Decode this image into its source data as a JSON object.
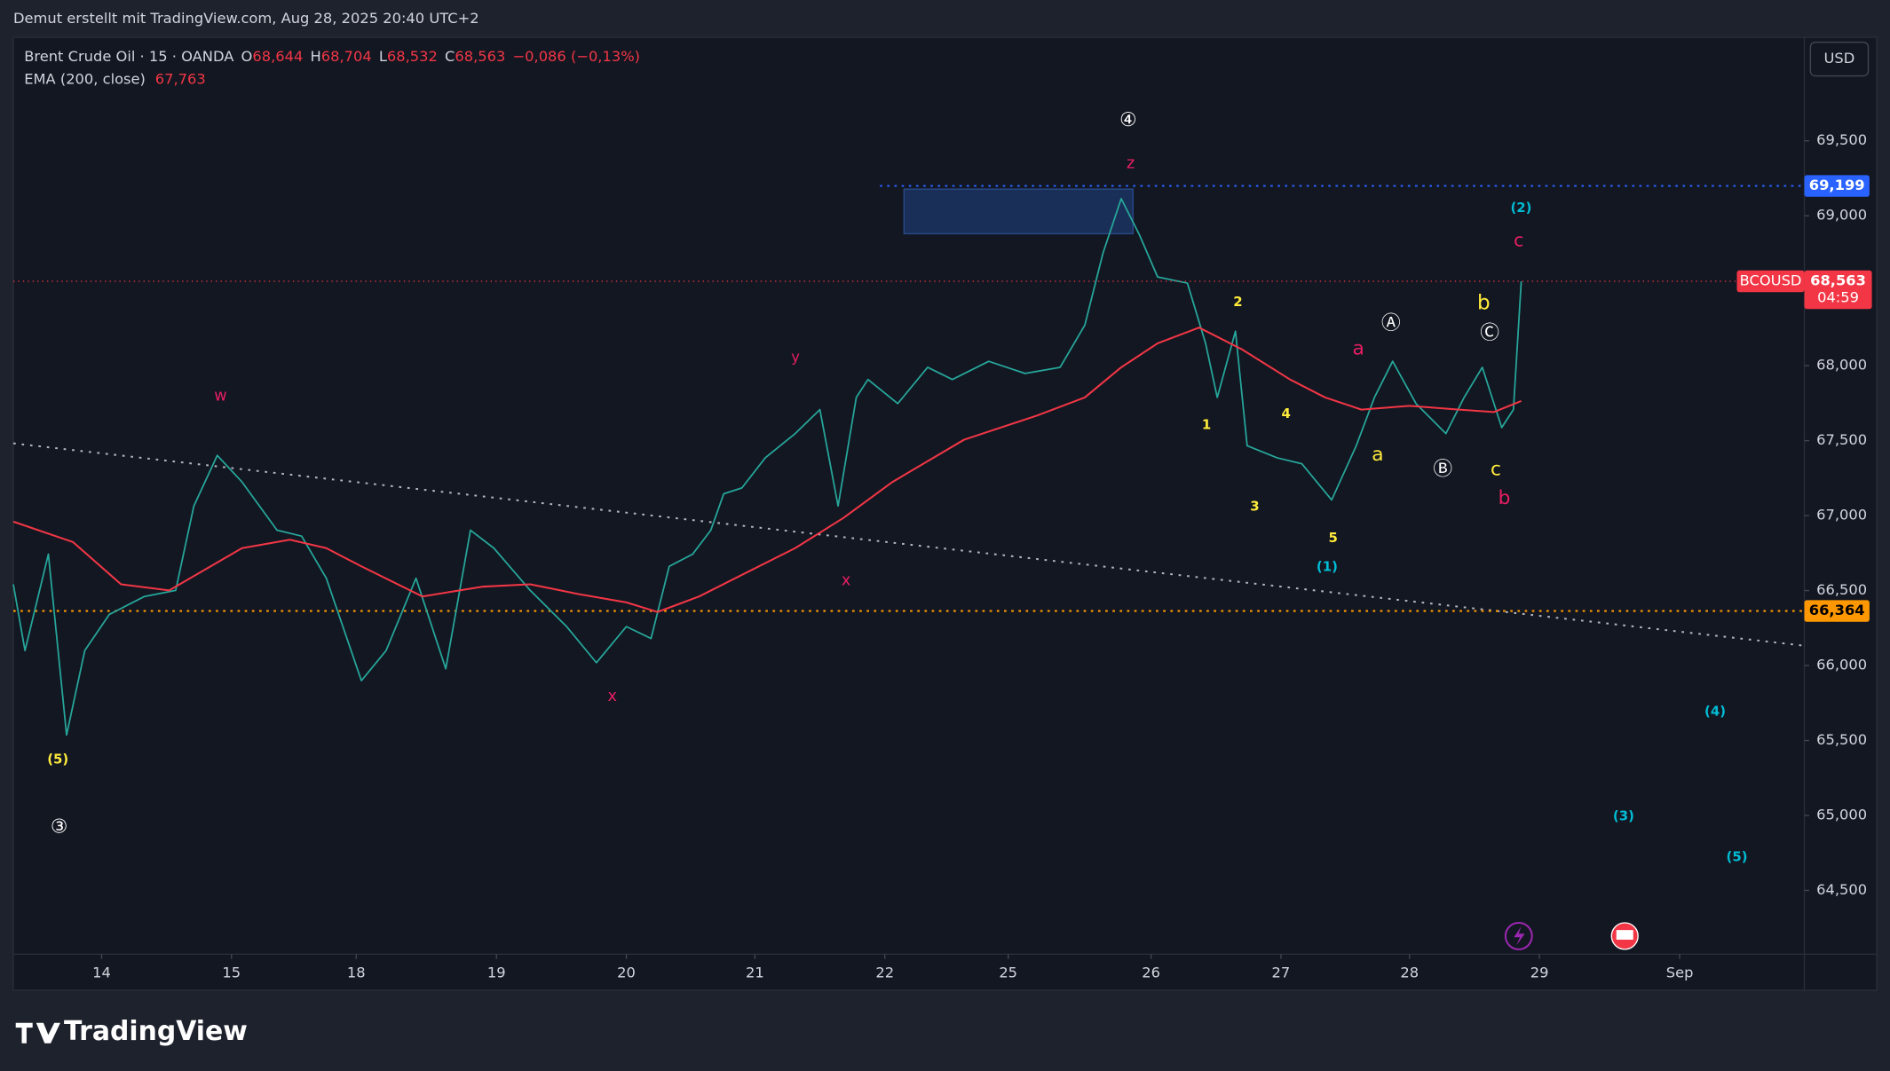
{
  "header": {
    "attribution": "Demut erstellt mit TradingView.com, Aug 28, 2025 20:40 UTC+2"
  },
  "legend": {
    "ohlc": [
      {
        "label": "O",
        "value": "68,644"
      },
      {
        "label": "H",
        "value": "68,704"
      },
      {
        "label": "L",
        "value": "68,532"
      },
      {
        "label": "C",
        "value": "68,563"
      }
    ],
    "change": "−0,086 (−0,13%)",
    "ema_value": "67,763"
  },
  "currency": "USD",
  "footer": {
    "logo": "TradingView"
  },
  "chart_data": {
    "type": "line",
    "xlim": [
      -0.68,
      13.11
    ],
    "ylim": [
      64075,
      70190
    ],
    "grid": false,
    "xticks": [
      {
        "value": 0,
        "label": "14"
      },
      {
        "value": 1.0,
        "label": "15"
      },
      {
        "value": 1.96,
        "label": "18"
      },
      {
        "value": 3.04,
        "label": "19"
      },
      {
        "value": 4.04,
        "label": "20"
      },
      {
        "value": 5.03,
        "label": "21"
      },
      {
        "value": 6.03,
        "label": "22"
      },
      {
        "value": 6.98,
        "label": "25"
      },
      {
        "value": 8.08,
        "label": "26"
      },
      {
        "value": 9.08,
        "label": "27"
      },
      {
        "value": 10.07,
        "label": "28"
      },
      {
        "value": 11.07,
        "label": "29"
      },
      {
        "value": 12.15,
        "label": "Sep"
      }
    ],
    "yticks": [
      {
        "value": 64500,
        "label": "64,500"
      },
      {
        "value": 65000,
        "label": "65,000"
      },
      {
        "value": 65500,
        "label": "65,500"
      },
      {
        "value": 66000,
        "label": "66,000"
      },
      {
        "value": 66500,
        "label": "66,500"
      },
      {
        "value": 67000,
        "label": "67,000"
      },
      {
        "value": 67500,
        "label": "67,500"
      },
      {
        "value": 68000,
        "label": "68,000"
      },
      {
        "value": 68500,
        "label": "68,500"
      },
      {
        "value": 69000,
        "label": "69,000"
      },
      {
        "value": 69500,
        "label": "69,500"
      }
    ],
    "series": [
      {
        "name": "Brent Crude Oil · 15 · OANDA",
        "color": "#26a69a",
        "x": [
          -0.68,
          -0.59,
          -0.41,
          -0.27,
          -0.13,
          0.06,
          0.33,
          0.57,
          0.71,
          0.89,
          1.08,
          1.35,
          1.54,
          1.73,
          2.0,
          2.19,
          2.42,
          2.65,
          2.84,
          3.02,
          3.3,
          3.58,
          3.81,
          4.04,
          4.23,
          4.37,
          4.55,
          4.69,
          4.79,
          4.93,
          5.11,
          5.34,
          5.53,
          5.67,
          5.81,
          5.9,
          6.13,
          6.36,
          6.55,
          6.83,
          7.11,
          7.38,
          7.57,
          7.71,
          7.85,
          7.99,
          8.13,
          8.36,
          8.5,
          8.59,
          8.73,
          8.82,
          9.05,
          9.24,
          9.47,
          9.66,
          9.8,
          9.94,
          10.12,
          10.35,
          10.49,
          10.63,
          10.78,
          10.87,
          10.93
        ],
        "values": [
          66542,
          66100,
          66743,
          65537,
          66100,
          66341,
          66461,
          66501,
          67064,
          67402,
          67225,
          66903,
          66863,
          66582,
          65899,
          66100,
          66582,
          65979,
          66903,
          66783,
          66501,
          66260,
          66019,
          66260,
          66180,
          66662,
          66743,
          66903,
          67145,
          67185,
          67386,
          67547,
          67707,
          67064,
          67788,
          67908,
          67747,
          67989,
          67908,
          68029,
          67948,
          67989,
          68270,
          68752,
          69114,
          68873,
          68592,
          68551,
          68149,
          67788,
          68230,
          67466,
          67386,
          67346,
          67104,
          67466,
          67788,
          68029,
          67747,
          67547,
          67788,
          67989,
          67587,
          67707,
          68563
        ]
      },
      {
        "name": "EMA (200, close)",
        "color": "#f23645",
        "x": [
          -0.68,
          -0.22,
          0.15,
          0.52,
          1.08,
          1.45,
          1.73,
          2.0,
          2.47,
          2.93,
          3.3,
          3.67,
          4.04,
          4.28,
          4.6,
          4.97,
          5.34,
          5.71,
          6.09,
          6.64,
          7.2,
          7.57,
          7.85,
          8.13,
          8.45,
          8.78,
          9.15,
          9.42,
          9.7,
          10.07,
          10.45,
          10.72,
          10.93
        ],
        "values": [
          66960,
          66823,
          66542,
          66501,
          66783,
          66839,
          66783,
          66662,
          66461,
          66526,
          66542,
          66477,
          66421,
          66357,
          66461,
          66622,
          66783,
          66984,
          67225,
          67506,
          67667,
          67788,
          67989,
          68149,
          68254,
          68109,
          67908,
          67788,
          67707,
          67732,
          67707,
          67691,
          67764
        ]
      }
    ],
    "hlines": [
      {
        "value": 69199,
        "label": "69,199",
        "color": "#2962ff"
      },
      {
        "value": 66364,
        "label": "66,364",
        "color": "#ff9800"
      }
    ],
    "price_marker": {
      "value": 68563,
      "label": "68,563",
      "symbol": "BCOUSD",
      "countdown": "04:59",
      "color": "#f23645"
    },
    "annotations": [
      {
        "text": "④",
        "color": "#ffffff"
      },
      {
        "text": "z",
        "color": "#e91e63"
      },
      {
        "text": "(2)",
        "color": "#00bcd4"
      },
      {
        "text": "c",
        "color": "#e91e63"
      },
      {
        "text": "2",
        "color": "#ffeb3b"
      },
      {
        "text": "Ⓐ",
        "color": "#ffffff"
      },
      {
        "text": "b",
        "color": "#ffeb3b"
      },
      {
        "text": "Ⓒ",
        "color": "#ffffff"
      },
      {
        "text": "a",
        "color": "#e91e63"
      },
      {
        "text": "y",
        "color": "#e91e63"
      },
      {
        "text": "w",
        "color": "#e91e63"
      },
      {
        "text": "1",
        "color": "#ffeb3b"
      },
      {
        "text": "4",
        "color": "#ffeb3b"
      },
      {
        "text": "a",
        "color": "#ffeb3b"
      },
      {
        "text": "Ⓑ",
        "color": "#ffffff"
      },
      {
        "text": "c",
        "color": "#ffeb3b"
      },
      {
        "text": "b",
        "color": "#e91e63"
      },
      {
        "text": "3",
        "color": "#ffeb3b"
      },
      {
        "text": "5",
        "color": "#ffeb3b"
      },
      {
        "text": "(1)",
        "color": "#00bcd4"
      },
      {
        "text": "x",
        "color": "#e91e63"
      },
      {
        "text": "x",
        "color": "#e91e63"
      },
      {
        "text": "(5)",
        "color": "#ffeb3b"
      },
      {
        "text": "③",
        "color": "#ffffff"
      },
      {
        "text": "(4)",
        "color": "#00bcd4"
      },
      {
        "text": "(3)",
        "color": "#00bcd4"
      },
      {
        "text": "(5)",
        "color": "#00bcd4"
      }
    ]
  }
}
